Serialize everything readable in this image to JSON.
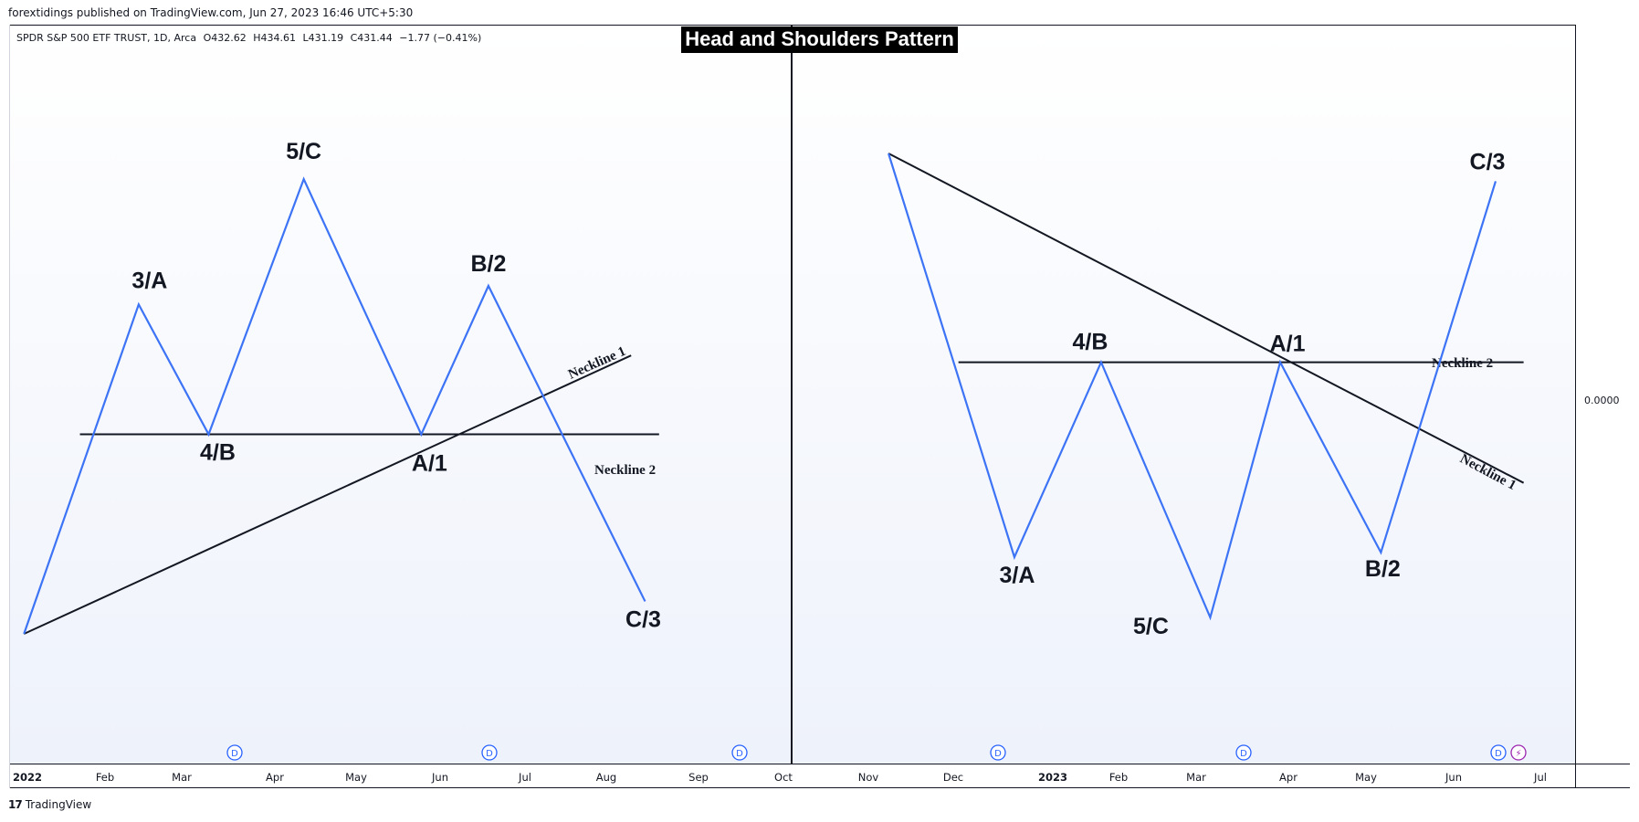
{
  "publisher_line": "forextidings published on TradingView.com, Jun 27, 2023 16:46 UTC+5:30",
  "symbol": {
    "name": "SPDR S&P 500 ETF TRUST, 1D, Arca",
    "open": "O432.62",
    "high": "H434.61",
    "low": "L431.19",
    "close": "C431.44",
    "change": "−1.77 (−0.41%)"
  },
  "title": "Head and Shoulders Pattern",
  "price_axis_label": "0.0000",
  "time_axis": [
    "2022",
    "Feb",
    "Mar",
    "Apr",
    "May",
    "Jun",
    "Jul",
    "Aug",
    "Sep",
    "Oct",
    "Nov",
    "Dec",
    "2023",
    "Feb",
    "Mar",
    "Apr",
    "May",
    "Jun",
    "Jul"
  ],
  "event_markers": [
    "D",
    "D",
    "D",
    "D",
    "D",
    "D",
    "⚡"
  ],
  "branding": "TradingView",
  "colors": {
    "wave_line": "#3d74f5",
    "neckline": "#131722",
    "title_bg": "#000000",
    "event_marker": "#2962ff",
    "flash_marker": "#9c27b0"
  },
  "chart_data": [
    {
      "type": "line",
      "name": "left pattern (head and shoulders top)",
      "points": [
        {
          "x": "2022-01-05",
          "y": 0.0,
          "label": ""
        },
        {
          "x": "2022-02-15",
          "y": 0.71,
          "label": "3/A"
        },
        {
          "x": "2022-03-12",
          "y": 0.43,
          "label": "4/B"
        },
        {
          "x": "2022-04-15",
          "y": 0.98,
          "label": "5/C"
        },
        {
          "x": "2022-05-27",
          "y": 0.43,
          "label": "A/1"
        },
        {
          "x": "2022-06-20",
          "y": 0.75,
          "label": "B/2"
        },
        {
          "x": "2022-08-15",
          "y": 0.07,
          "label": "C/3"
        }
      ],
      "necklines": [
        {
          "label": "Neckline 1",
          "from": {
            "x": "2022-01-05",
            "y": 0.0
          },
          "to": {
            "x": "2022-08-10",
            "y": 0.6
          }
        },
        {
          "label": "Neckline 2",
          "from": {
            "x": "2022-01-25",
            "y": 0.43
          },
          "to": {
            "x": "2022-08-20",
            "y": 0.43
          }
        }
      ]
    },
    {
      "type": "line",
      "name": "right pattern (inverse head and shoulders)",
      "points": [
        {
          "x": "2022-11-10",
          "y": 1.0,
          "label": ""
        },
        {
          "x": "2022-12-25",
          "y": 0.13,
          "label": "3/A"
        },
        {
          "x": "2023-01-25",
          "y": 0.55,
          "label": "4/B"
        },
        {
          "x": "2023-03-05",
          "y": 0.0,
          "label": "5/C"
        },
        {
          "x": "2023-03-30",
          "y": 0.55,
          "label": "A/1"
        },
        {
          "x": "2023-05-05",
          "y": 0.14,
          "label": "B/2"
        },
        {
          "x": "2023-06-15",
          "y": 0.94,
          "label": "C/3"
        }
      ],
      "necklines": [
        {
          "label": "Neckline 1",
          "from": {
            "x": "2022-11-10",
            "y": 1.0
          },
          "to": {
            "x": "2023-06-25",
            "y": 0.29
          }
        },
        {
          "label": "Neckline 2",
          "from": {
            "x": "2022-12-05",
            "y": 0.55
          },
          "to": {
            "x": "2023-06-25",
            "y": 0.55
          }
        }
      ]
    }
  ]
}
